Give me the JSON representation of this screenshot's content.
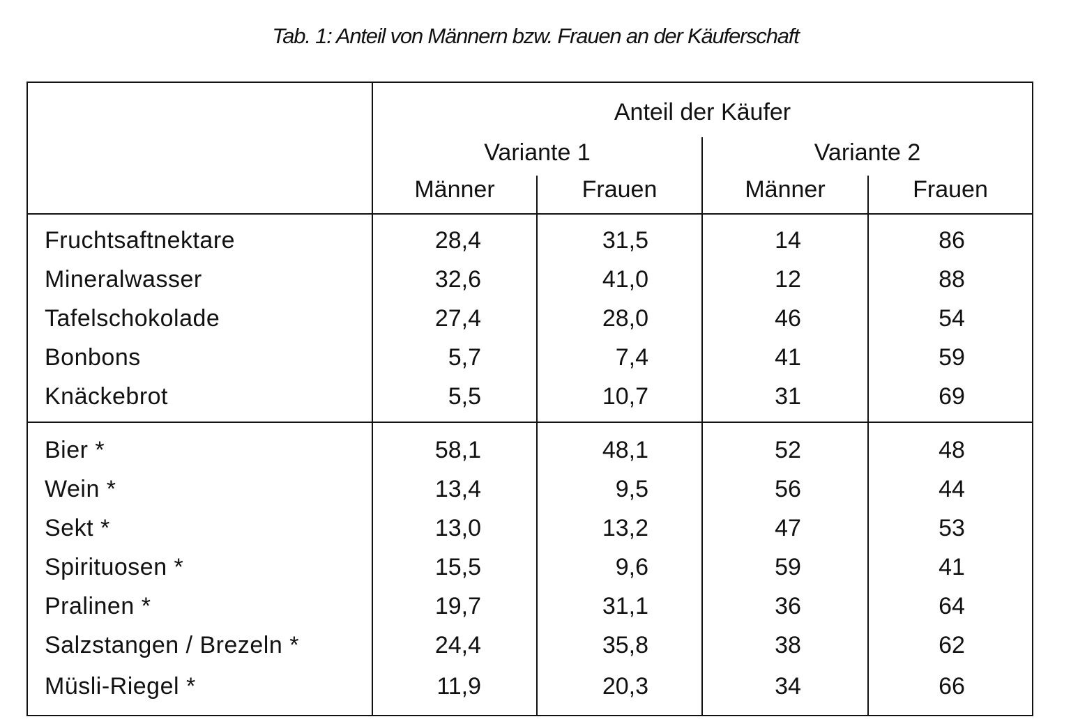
{
  "caption": "Tab. 1: Anteil von Männern bzw. Frauen an der Käuferschaft",
  "header": {
    "group": "Anteil der Käufer",
    "variants": [
      "Variante 1",
      "Variante 2"
    ],
    "columns": [
      "Männer",
      "Frauen",
      "Männer",
      "Frauen"
    ]
  },
  "section1": [
    {
      "label": "Fruchtsaftnektare",
      "v1m": "28,4",
      "v1f": "31,5",
      "v2m": "14",
      "v2f": "86"
    },
    {
      "label": "Mineralwasser",
      "v1m": "32,6",
      "v1f": "41,0",
      "v2m": "12",
      "v2f": "88"
    },
    {
      "label": "Tafelschokolade",
      "v1m": "27,4",
      "v1f": "28,0",
      "v2m": "46",
      "v2f": "54"
    },
    {
      "label": "Bonbons",
      "v1m": "5,7",
      "v1f": "7,4",
      "v2m": "41",
      "v2f": "59"
    },
    {
      "label": "Knäckebrot",
      "v1m": "5,5",
      "v1f": "10,7",
      "v2m": "31",
      "v2f": "69"
    }
  ],
  "section2": [
    {
      "label": "Bier *",
      "v1m": "58,1",
      "v1f": "48,1",
      "v2m": "52",
      "v2f": "48"
    },
    {
      "label": "Wein *",
      "v1m": "13,4",
      "v1f": "9,5",
      "v2m": "56",
      "v2f": "44"
    },
    {
      "label": "Sekt *",
      "v1m": "13,0",
      "v1f": "13,2",
      "v2m": "47",
      "v2f": "53"
    },
    {
      "label": "Spirituosen *",
      "v1m": "15,5",
      "v1f": "9,6",
      "v2m": "59",
      "v2f": "41"
    },
    {
      "label": "Pralinen *",
      "v1m": "19,7",
      "v1f": "31,1",
      "v2m": "36",
      "v2f": "64"
    },
    {
      "label": "Salzstangen / Brezeln *",
      "v1m": "24,4",
      "v1f": "35,8",
      "v2m": "38",
      "v2f": "62"
    },
    {
      "label": "Müsli-Riegel *",
      "v1m": "11,9",
      "v1f": "20,3",
      "v2m": "34",
      "v2f": "66"
    }
  ]
}
